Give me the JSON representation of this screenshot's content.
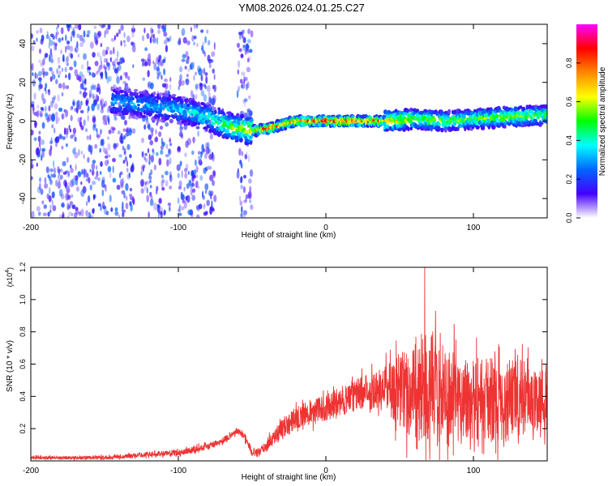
{
  "figure_title": "YM08.2026.024.01.25.C27",
  "chart_data": [
    {
      "type": "heatmap",
      "title": "YM08.2026.024.01.25.C27",
      "xlabel": "Height of straight line (km)",
      "ylabel": "Frequency (Hz)",
      "xlim": [
        -200,
        150
      ],
      "ylim": [
        -50,
        50
      ],
      "x_ticks": [
        -200,
        -100,
        0,
        100
      ],
      "y_ticks": [
        -40,
        -20,
        0,
        20,
        40
      ],
      "colorbar": {
        "label": "Normalized spectral amplitude",
        "range": [
          0,
          1
        ],
        "ticks": [
          0.0,
          0.2,
          0.4,
          0.6,
          0.8
        ],
        "tick_labels": [
          "0.0",
          "0.2",
          "0.4",
          "0.6",
          "0.8"
        ],
        "colors": [
          "#ff00ff",
          "#ff0000",
          "#ff8800",
          "#ffff00",
          "#00ff00",
          "#00ffff",
          "#0066ff",
          "#4400ff",
          "#ffffff"
        ]
      },
      "ridge": {
        "description_points_x": [
          -140,
          -120,
          -100,
          -80,
          -65,
          -50,
          -40,
          -30,
          -20,
          0,
          20,
          40,
          60,
          80,
          100,
          120,
          150
        ],
        "frequency_hz": [
          10,
          8,
          6,
          2,
          -3,
          -5,
          -4,
          -2,
          0,
          0,
          0,
          0,
          1,
          0,
          1,
          2,
          3
        ],
        "peak_amplitude": [
          0.35,
          0.35,
          0.4,
          0.45,
          0.55,
          0.75,
          0.9,
          0.85,
          0.85,
          0.95,
          0.95,
          0.8,
          0.6,
          0.6,
          0.55,
          0.6,
          0.55
        ]
      },
      "noise_bands_x": [
        [
          -200,
          -130
        ],
        [
          -125,
          -105
        ],
        [
          -100,
          -75
        ],
        [
          -60,
          -50
        ]
      ]
    },
    {
      "type": "line",
      "xlabel": "Height of straight line (km)",
      "ylabel": "SNR (10 * v/v)",
      "y_scale_label": "(x10",
      "y_scale_exponent": "4",
      "y_scale_close": ")",
      "xlim": [
        -200,
        150
      ],
      "ylim": [
        0,
        1.2
      ],
      "x_ticks": [
        -200,
        -100,
        0,
        100
      ],
      "y_ticks": [
        0.2,
        0.4,
        0.6,
        0.8,
        1.0,
        1.2
      ],
      "y_tick_labels": [
        "0.2",
        "0.4",
        "0.6",
        "0.8",
        "1.0",
        "1.2"
      ],
      "color": "#ee3333",
      "series": [
        {
          "name": "SNR",
          "envelope_x": [
            -200,
            -150,
            -120,
            -100,
            -80,
            -70,
            -60,
            -55,
            -50,
            -45,
            -40,
            -30,
            -20,
            -10,
            0,
            10,
            20,
            30,
            40,
            50,
            60,
            70,
            80,
            90,
            100,
            110,
            120,
            130,
            140,
            150
          ],
          "envelope_mean": [
            0.02,
            0.02,
            0.04,
            0.05,
            0.09,
            0.12,
            0.19,
            0.15,
            0.05,
            0.05,
            0.1,
            0.2,
            0.27,
            0.3,
            0.33,
            0.37,
            0.41,
            0.44,
            0.46,
            0.45,
            0.42,
            0.45,
            0.4,
            0.38,
            0.4,
            0.38,
            0.36,
            0.4,
            0.38,
            0.38
          ],
          "envelope_spread": [
            0.01,
            0.012,
            0.015,
            0.02,
            0.02,
            0.02,
            0.02,
            0.03,
            0.02,
            0.03,
            0.04,
            0.06,
            0.07,
            0.08,
            0.08,
            0.09,
            0.1,
            0.11,
            0.14,
            0.25,
            0.3,
            0.35,
            0.32,
            0.28,
            0.28,
            0.25,
            0.25,
            0.25,
            0.2,
            0.2
          ],
          "peak_x": 67,
          "peak_value": 1.2
        }
      ]
    }
  ]
}
